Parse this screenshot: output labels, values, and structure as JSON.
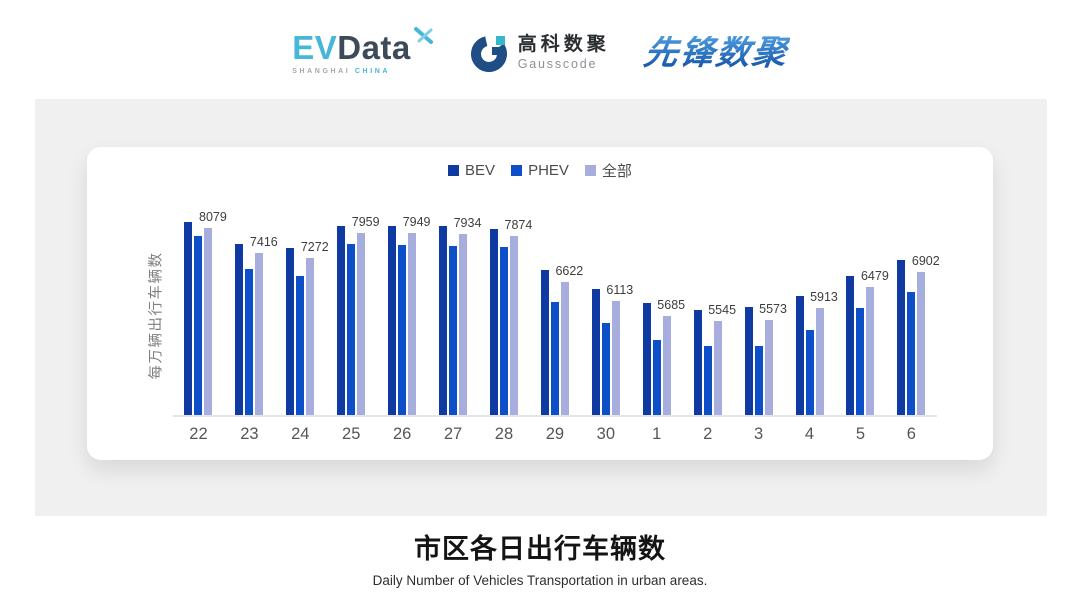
{
  "header": {
    "evdata": {
      "ev": "EV",
      "data": "Data",
      "sub_left": "SHANGHAI",
      "sub_right": "CHINA"
    },
    "gausscode": {
      "cn": "高科数聚",
      "en": "Gausscode"
    },
    "xianfeng": {
      "text": "先锋数聚"
    }
  },
  "colors": {
    "bev": "#0e3aa2",
    "phev": "#0c4fc8",
    "all": "#a7aedd",
    "panel_bg": "#f0f0f1",
    "axis_line": "#e5e5e7",
    "evdata_blue": "#47b7d9",
    "evdata_dark": "#3d4a5a",
    "gauss_navy": "#1f4e86",
    "gauss_teal": "#35b8cc",
    "xianfeng_blue": "#2a72c4"
  },
  "chart_data": {
    "type": "bar",
    "title": "市区各日出行车辆数",
    "subtitle": "Daily Number of Vehicles Transportation in urban areas.",
    "ylabel": "每万辆出行车辆数",
    "xlabel": "",
    "categories": [
      "22",
      "23",
      "24",
      "25",
      "26",
      "27",
      "28",
      "29",
      "30",
      "1",
      "2",
      "3",
      "4",
      "5",
      "6"
    ],
    "series": [
      {
        "name": "BEV",
        "color": "#0e3aa2",
        "values": [
          8240,
          7660,
          7550,
          8150,
          8140,
          8130,
          8060,
          6950,
          6440,
          6050,
          5870,
          5940,
          6240,
          6780,
          7220
        ]
      },
      {
        "name": "PHEV",
        "color": "#0c4fc8",
        "values": [
          7870,
          6980,
          6770,
          7640,
          7620,
          7590,
          7570,
          6080,
          5500,
          5030,
          4880,
          4880,
          5300,
          5920,
          6350
        ]
      },
      {
        "name": "全部",
        "color": "#a7aedd",
        "values": [
          8079,
          7416,
          7272,
          7959,
          7949,
          7934,
          7874,
          6622,
          6113,
          5685,
          5545,
          5573,
          5913,
          6479,
          6902
        ]
      }
    ],
    "value_labels": [
      8079,
      7416,
      7272,
      7959,
      7949,
      7934,
      7874,
      6622,
      6113,
      5685,
      5545,
      5573,
      5913,
      6479,
      6902
    ],
    "value_labels_series": "全部",
    "ylim": [
      3000,
      8550
    ],
    "grid": false,
    "legend_position": "top-center"
  },
  "footer": {
    "title": "市区各日出行车辆数",
    "subtitle": "Daily Number of Vehicles Transportation in urban areas."
  }
}
